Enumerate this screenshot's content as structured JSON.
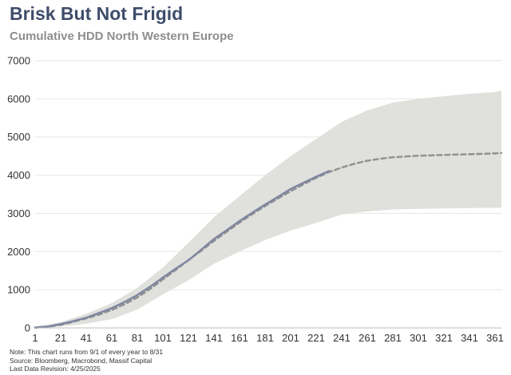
{
  "header": {
    "title": "Brisk But Not Frigid",
    "subtitle": "Cumulative HDD North Western Europe"
  },
  "footer": {
    "note": "Note: This chart runs from 9/1 of every year to 8/31",
    "source": "Source: Bloomberg, Macrobond, Massif Capital",
    "revision": "Last Data Revision: 4/25/2025"
  },
  "colors": {
    "actual": "#7e86a1",
    "average": "#8f8f8f",
    "range": "#e0e0dc",
    "grid": "#e6e6e6"
  },
  "chart_data": {
    "type": "area",
    "title": "Cumulative HDD North Western Europe",
    "xlabel": "",
    "ylabel": "",
    "xlim": [
      1,
      366
    ],
    "ylim": [
      0,
      7000
    ],
    "grid": true,
    "x_ticks": [
      1,
      21,
      41,
      61,
      81,
      101,
      121,
      141,
      161,
      181,
      201,
      221,
      241,
      261,
      281,
      301,
      321,
      341,
      361
    ],
    "y_ticks": [
      0,
      1000,
      2000,
      3000,
      4000,
      5000,
      6000,
      7000
    ],
    "range_band": {
      "x": [
        1,
        21,
        41,
        61,
        81,
        101,
        121,
        141,
        161,
        181,
        201,
        221,
        241,
        261,
        281,
        301,
        321,
        341,
        361,
        366
      ],
      "upper": [
        40,
        150,
        370,
        650,
        1050,
        1580,
        2230,
        2900,
        3450,
        4000,
        4500,
        4950,
        5400,
        5700,
        5900,
        6000,
        6070,
        6130,
        6180,
        6220
      ],
      "lower": [
        0,
        40,
        110,
        230,
        480,
        880,
        1250,
        1680,
        2000,
        2300,
        2550,
        2750,
        2970,
        3050,
        3100,
        3120,
        3130,
        3140,
        3145,
        3150
      ]
    },
    "series": [
      {
        "x": [
          1,
          11,
          21,
          31,
          41,
          51,
          61,
          71,
          81,
          91,
          101,
          111,
          121,
          131,
          141,
          151,
          161,
          171,
          181,
          191,
          201,
          211,
          221,
          231
        ],
        "values": [
          10,
          35,
          100,
          180,
          270,
          390,
          520,
          680,
          860,
          1080,
          1320,
          1550,
          1770,
          2050,
          2330,
          2560,
          2800,
          3020,
          3230,
          3430,
          3640,
          3800,
          3960,
          4110
        ]
      },
      {
        "style": "dashed",
        "x": [
          1,
          11,
          21,
          31,
          41,
          51,
          61,
          71,
          81,
          91,
          101,
          111,
          121,
          131,
          141,
          151,
          161,
          171,
          181,
          191,
          201,
          211,
          221,
          231,
          241,
          251,
          261,
          271,
          281,
          291,
          301,
          311,
          321,
          331,
          341,
          351,
          361,
          366
        ],
        "values": [
          5,
          30,
          80,
          160,
          250,
          350,
          470,
          620,
          800,
          1020,
          1270,
          1520,
          1780,
          2020,
          2280,
          2520,
          2760,
          2980,
          3190,
          3390,
          3580,
          3760,
          3930,
          4080,
          4200,
          4300,
          4380,
          4430,
          4470,
          4490,
          4510,
          4520,
          4530,
          4540,
          4550,
          4560,
          4570,
          4580
        ]
      }
    ]
  }
}
